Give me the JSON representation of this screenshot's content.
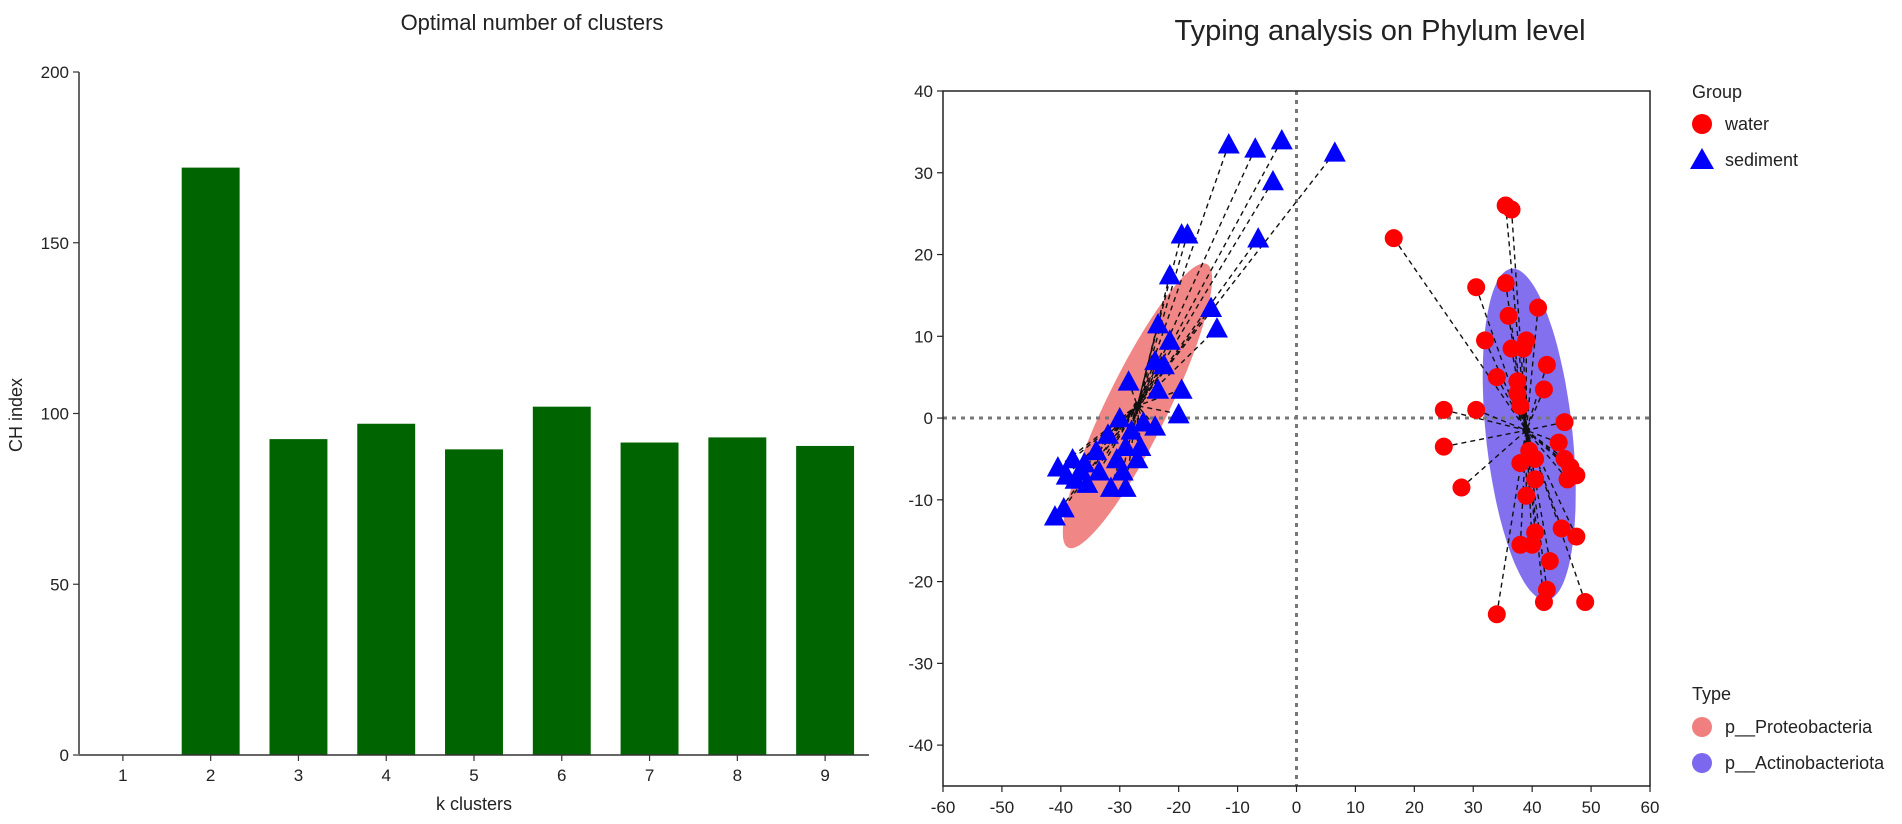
{
  "chart_data": [
    {
      "type": "bar",
      "title": "Optimal number of clusters",
      "xlabel": "k clusters",
      "ylabel": "CH index",
      "categories": [
        "1",
        "2",
        "3",
        "4",
        "5",
        "6",
        "7",
        "8",
        "9"
      ],
      "values": [
        0,
        172,
        92.5,
        97,
        89.5,
        102,
        91.5,
        93,
        90.5
      ],
      "ylim": [
        0,
        200
      ],
      "yticks": [
        0,
        50,
        100,
        150,
        200
      ],
      "color": "#006400",
      "grid": false
    },
    {
      "type": "scatter",
      "title": "Typing analysis on Phylum level",
      "xlabel": "",
      "ylabel": "",
      "xlim": [
        -60,
        60
      ],
      "ylim": [
        -45,
        40
      ],
      "xticks": [
        -60,
        -50,
        -40,
        -30,
        -20,
        -10,
        0,
        10,
        20,
        30,
        40,
        50,
        60
      ],
      "yticks": [
        -40,
        -30,
        -20,
        -10,
        0,
        10,
        20,
        30,
        40
      ],
      "grid": false,
      "reference_lines": {
        "x": 0,
        "y": 0,
        "style": "dotted"
      },
      "legend": {
        "placement": "right",
        "group_title": "Group",
        "type_title": "Type"
      },
      "series": [
        {
          "name": "water",
          "marker": "circle",
          "color": "#ff0000",
          "centroid": [
            39,
            -1.5
          ],
          "points": [
            [
              16.5,
              22
            ],
            [
              35.5,
              26
            ],
            [
              36.5,
              25.5
            ],
            [
              30.5,
              16
            ],
            [
              35.5,
              16.5
            ],
            [
              36,
              12.5
            ],
            [
              41,
              13.5
            ],
            [
              32,
              9.5
            ],
            [
              36.5,
              8.5
            ],
            [
              38.5,
              8.5
            ],
            [
              39,
              9.5
            ],
            [
              42.5,
              6.5
            ],
            [
              34,
              5
            ],
            [
              37.5,
              4.5
            ],
            [
              37.5,
              3
            ],
            [
              42,
              3.5
            ],
            [
              25,
              1
            ],
            [
              30.5,
              1
            ],
            [
              38,
              1.5
            ],
            [
              45.5,
              -0.5
            ],
            [
              44.5,
              -3
            ],
            [
              25,
              -3.5
            ],
            [
              39.5,
              -4
            ],
            [
              40.5,
              -5
            ],
            [
              38,
              -5.5
            ],
            [
              45.5,
              -5
            ],
            [
              46.5,
              -6
            ],
            [
              47.5,
              -7
            ],
            [
              46,
              -7.5
            ],
            [
              40.5,
              -7.5
            ],
            [
              28,
              -8.5
            ],
            [
              39,
              -9.5
            ],
            [
              40.5,
              -14
            ],
            [
              45,
              -13.5
            ],
            [
              47.5,
              -14.5
            ],
            [
              38,
              -15.5
            ],
            [
              40,
              -15.5
            ],
            [
              43,
              -17.5
            ],
            [
              42.5,
              -21
            ],
            [
              42,
              -22.5
            ],
            [
              49,
              -22.5
            ],
            [
              34,
              -24
            ]
          ]
        },
        {
          "name": "sediment",
          "marker": "triangle",
          "color": "#0000ff",
          "centroid": [
            -27,
            1.5
          ],
          "points": [
            [
              -11.5,
              33.5
            ],
            [
              -2.5,
              34
            ],
            [
              -7,
              33
            ],
            [
              6.5,
              32.5
            ],
            [
              -4,
              29
            ],
            [
              -19.5,
              22.5
            ],
            [
              -18.5,
              22.5
            ],
            [
              -6.5,
              22
            ],
            [
              -21.5,
              17.5
            ],
            [
              -14.5,
              13.5
            ],
            [
              -23.5,
              11.5
            ],
            [
              -21.5,
              9.5
            ],
            [
              -13.5,
              11
            ],
            [
              -24,
              7
            ],
            [
              -22.5,
              6.5
            ],
            [
              -28.5,
              4.5
            ],
            [
              -19.5,
              3.5
            ],
            [
              -23.5,
              3.5
            ],
            [
              -30,
              0
            ],
            [
              -20,
              0.5
            ],
            [
              -26,
              -0.5
            ],
            [
              -24,
              -1
            ],
            [
              -28,
              -1.5
            ],
            [
              -32,
              -2
            ],
            [
              -29,
              -3.5
            ],
            [
              -26.5,
              -3.5
            ],
            [
              -34,
              -4
            ],
            [
              -30.5,
              -5
            ],
            [
              -27,
              -5
            ],
            [
              -38,
              -5
            ],
            [
              -36,
              -5.5
            ],
            [
              -40.5,
              -6
            ],
            [
              -36.5,
              -6.5
            ],
            [
              -33.5,
              -6.5
            ],
            [
              -29.5,
              -6.5
            ],
            [
              -39,
              -7
            ],
            [
              -37.5,
              -7.5
            ],
            [
              -35.5,
              -8
            ],
            [
              -31.5,
              -8.5
            ],
            [
              -29,
              -8.5
            ],
            [
              -39.5,
              -11
            ],
            [
              -41,
              -12
            ]
          ]
        }
      ],
      "ellipses": [
        {
          "name": "p__Proteobacteria",
          "color": "#f08080",
          "center": [
            -27,
            1.5
          ],
          "semi_axes": [
            21,
            4.8
          ],
          "angle_deg": 55
        },
        {
          "name": "p__Actinobacteriota",
          "color": "#7b68ee",
          "center": [
            39.5,
            -2
          ],
          "semi_axes": [
            20.5,
            7.3
          ],
          "angle_deg": 99
        }
      ]
    }
  ]
}
